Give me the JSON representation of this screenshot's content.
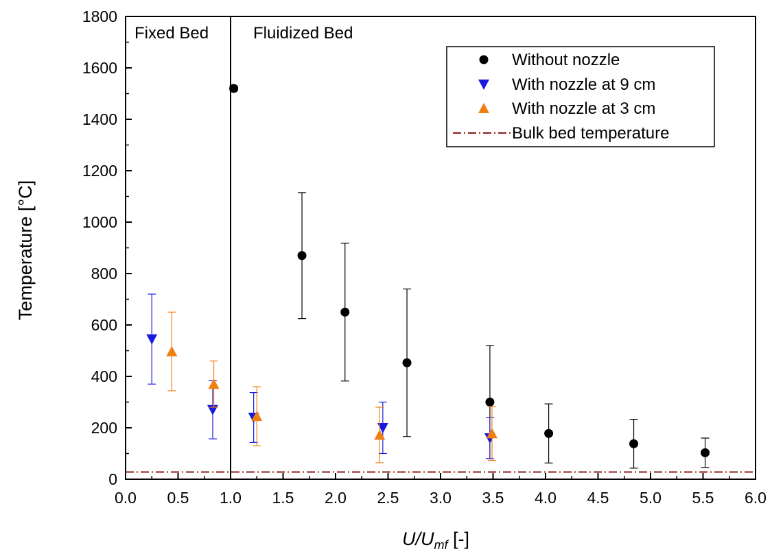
{
  "chart_data": {
    "type": "scatter",
    "xlabel": {
      "main": "U/U",
      "sub": "mf",
      "suffix": " [-]"
    },
    "ylabel": "Temperature [°C]",
    "xlim": [
      0.0,
      6.0
    ],
    "ylim": [
      0,
      1800
    ],
    "x_ticks": [
      "0.0",
      "0.5",
      "1.0",
      "1.5",
      "2.0",
      "2.5",
      "3.0",
      "3.5",
      "4.0",
      "4.5",
      "5.0",
      "5.5",
      "6.0"
    ],
    "y_ticks": [
      "0",
      "200",
      "400",
      "600",
      "800",
      "1000",
      "1200",
      "1400",
      "1600",
      "1800"
    ],
    "grid": false,
    "legend_position": "top-right",
    "regions": [
      {
        "label": "Fixed Bed"
      },
      {
        "label": "Fluidized Bed"
      }
    ],
    "divider_x": 1.0,
    "series": [
      {
        "name": "Without nozzle",
        "marker": "circle",
        "color": "#000000",
        "points": [
          {
            "x": 1.03,
            "y": 1520,
            "err": 10
          },
          {
            "x": 1.68,
            "y": 870,
            "err": 245
          },
          {
            "x": 2.09,
            "y": 650,
            "err": 268
          },
          {
            "x": 2.68,
            "y": 453,
            "err": 287
          },
          {
            "x": 3.47,
            "y": 300,
            "err": 220
          },
          {
            "x": 4.03,
            "y": 178,
            "err": 115
          },
          {
            "x": 4.84,
            "y": 138,
            "err": 95
          },
          {
            "x": 5.52,
            "y": 103,
            "err": 57
          }
        ]
      },
      {
        "name": "With nozzle at 9 cm",
        "marker": "triangle-down",
        "color": "#1a1adb",
        "points": [
          {
            "x": 0.25,
            "y": 545,
            "err": 175
          },
          {
            "x": 0.83,
            "y": 270,
            "err": 113
          },
          {
            "x": 1.22,
            "y": 240,
            "err": 97
          },
          {
            "x": 2.45,
            "y": 200,
            "err": 100
          },
          {
            "x": 3.47,
            "y": 160,
            "err": 80
          }
        ]
      },
      {
        "name": "With nozzle at 3 cm",
        "marker": "triangle-up",
        "color": "#f07f12",
        "points": [
          {
            "x": 0.44,
            "y": 497,
            "err": 153
          },
          {
            "x": 0.84,
            "y": 370,
            "err": 90
          },
          {
            "x": 1.25,
            "y": 245,
            "err": 115
          },
          {
            "x": 2.42,
            "y": 172,
            "err": 108
          },
          {
            "x": 3.49,
            "y": 178,
            "err": 105
          }
        ]
      }
    ],
    "reference_line": {
      "name": "Bulk bed temperature",
      "y": 28,
      "style": "dash-dot",
      "color": "#8b1a1a"
    }
  }
}
